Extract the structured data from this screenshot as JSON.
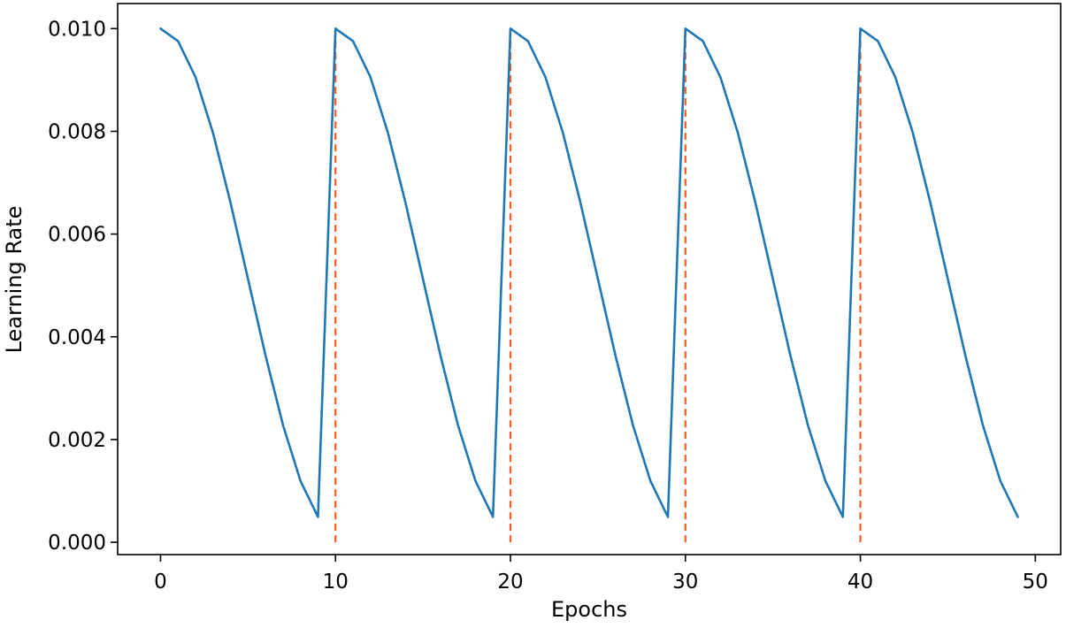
{
  "chart_data": {
    "type": "line",
    "title": "",
    "xlabel": "Epochs",
    "ylabel": "Learning Rate",
    "xlim": [
      -2.45,
      51.45
    ],
    "ylim": [
      -0.00024,
      0.010488
    ],
    "grid": false,
    "xticks": [
      0,
      10,
      20,
      30,
      40,
      50
    ],
    "xtick_labels": [
      "0",
      "10",
      "20",
      "30",
      "40",
      "50"
    ],
    "yticks": [
      0.0,
      0.002,
      0.004,
      0.006,
      0.008,
      0.01
    ],
    "ytick_labels": [
      "0.000",
      "0.002",
      "0.004",
      "0.006",
      "0.008",
      "0.010"
    ],
    "series": [
      {
        "style": "solid",
        "color": "#1f77b4",
        "x": [
          0,
          1,
          2,
          3,
          4,
          5,
          6,
          7,
          8,
          9,
          10,
          11,
          12,
          13,
          14,
          15,
          16,
          17,
          18,
          19,
          20,
          21,
          22,
          23,
          24,
          25,
          26,
          27,
          28,
          29,
          30,
          31,
          32,
          33,
          34,
          35,
          36,
          37,
          38,
          39,
          40,
          41,
          42,
          43,
          44,
          45,
          46,
          47,
          48,
          49
        ],
        "y": [
          0.01,
          0.009757,
          0.009055,
          0.007969,
          0.006613,
          0.005125,
          0.003637,
          0.002281,
          0.001195,
          0.000493,
          0.01,
          0.009757,
          0.009055,
          0.007969,
          0.006613,
          0.005125,
          0.003637,
          0.002281,
          0.001195,
          0.000493,
          0.01,
          0.009757,
          0.009055,
          0.007969,
          0.006613,
          0.005125,
          0.003637,
          0.002281,
          0.001195,
          0.000493,
          0.01,
          0.009757,
          0.009055,
          0.007969,
          0.006613,
          0.005125,
          0.003637,
          0.002281,
          0.001195,
          0.000493,
          0.01,
          0.009757,
          0.009055,
          0.007969,
          0.006613,
          0.005125,
          0.003637,
          0.002281,
          0.001195,
          0.000493
        ]
      }
    ],
    "vlines": {
      "style": "dashed",
      "color": "#ff5a1f",
      "x": [
        10,
        20,
        30,
        40
      ],
      "ymin": 0.0,
      "ymax": 0.01
    }
  }
}
